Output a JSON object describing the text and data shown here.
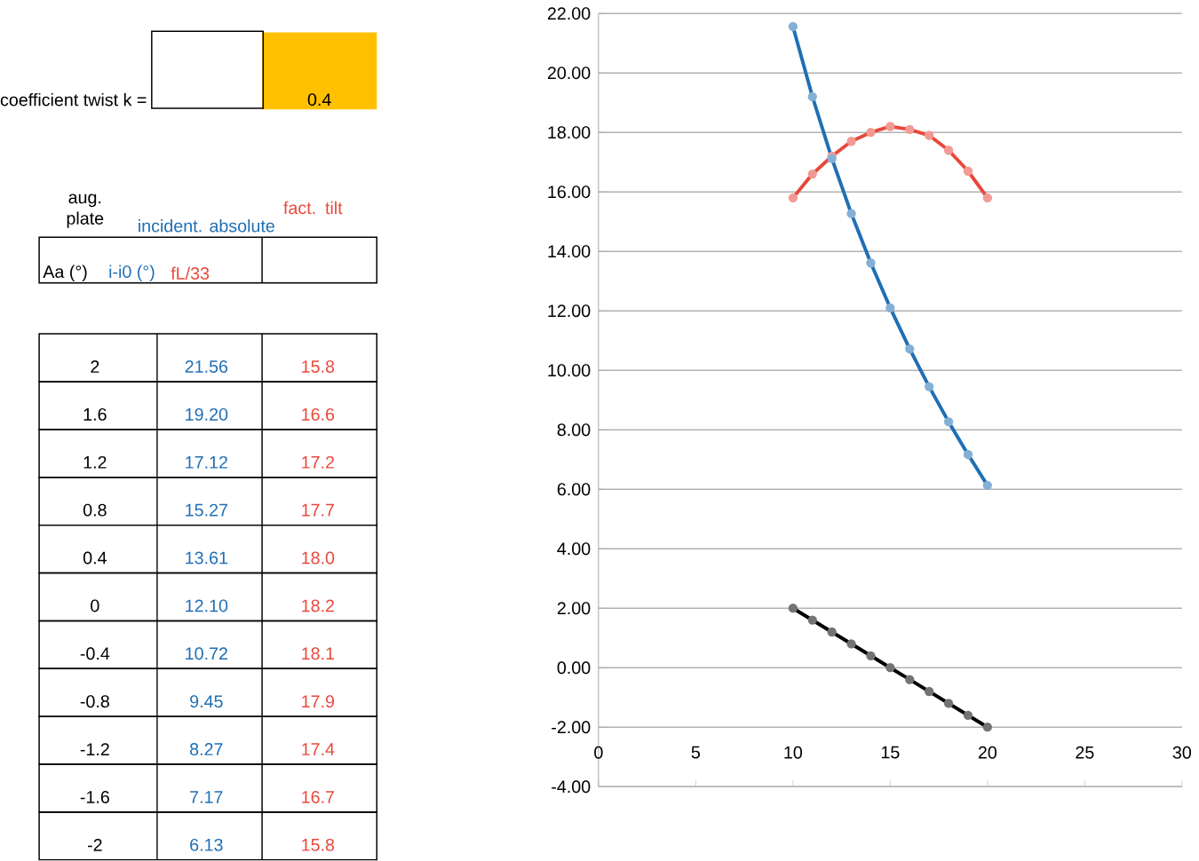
{
  "chart_data": {
    "type": "line",
    "x": [
      10,
      11,
      12,
      13,
      14,
      15,
      16,
      17,
      18,
      19,
      20
    ],
    "xlim": [
      0,
      30
    ],
    "xticks": [
      0,
      5,
      10,
      15,
      20,
      25,
      30
    ],
    "ylim": [
      -4,
      22
    ],
    "yticks": [
      {
        "value": -4,
        "label": "-4.00"
      },
      {
        "value": -2,
        "label": "-2.00"
      },
      {
        "value": 0,
        "label": "0.00"
      },
      {
        "value": 2,
        "label": "2.00"
      },
      {
        "value": 4,
        "label": "4.00"
      },
      {
        "value": 6,
        "label": "6.00"
      },
      {
        "value": 8,
        "label": "8.00"
      },
      {
        "value": 10,
        "label": "10.00"
      },
      {
        "value": 12,
        "label": "12.00"
      },
      {
        "value": 14,
        "label": "14.00"
      },
      {
        "value": 16,
        "label": "16.00"
      },
      {
        "value": 18,
        "label": "18.00"
      },
      {
        "value": 20,
        "label": "20.00"
      },
      {
        "value": 22,
        "label": "22.00"
      }
    ],
    "grid": "y",
    "marker": "circle",
    "line_style": "solid",
    "series": [
      {
        "name": "Aa (°)",
        "color": "#000000",
        "values": [
          2,
          1.6,
          1.2,
          0.8,
          0.4,
          0,
          -0.4,
          -0.8,
          -1.2,
          -1.6,
          -2
        ]
      },
      {
        "name": "i-i0 (°)",
        "color": "#1f6fb4",
        "values": [
          21.56,
          19.2,
          17.12,
          15.27,
          13.61,
          12.1,
          10.72,
          9.45,
          8.27,
          7.17,
          6.13
        ]
      },
      {
        "name": "fL/33",
        "color": "#e8483a",
        "values": [
          15.8,
          16.6,
          17.2,
          17.7,
          18.0,
          18.2,
          18.1,
          17.9,
          17.4,
          16.7,
          15.8
        ]
      }
    ],
    "annotations": [
      "coefficient  twist k =",
      "0.4",
      "aug. plate",
      "incident. absolute",
      "fact. tilt",
      "2",
      "21.56",
      "15.8",
      "1.6",
      "19.20",
      "16.6",
      "1.2",
      "17.12",
      "17.2",
      "0.8",
      "15.27",
      "17.7",
      "0.4",
      "13.61",
      "18.0",
      "0",
      "12.10",
      "18.2",
      "-0.4",
      "10.72",
      "18.1",
      "-0.8",
      "9.45",
      "17.9",
      "-1.2",
      "8.27",
      "17.4",
      "-1.6",
      "7.17",
      "16.7",
      "-2",
      "6.13",
      "15.8"
    ]
  }
}
